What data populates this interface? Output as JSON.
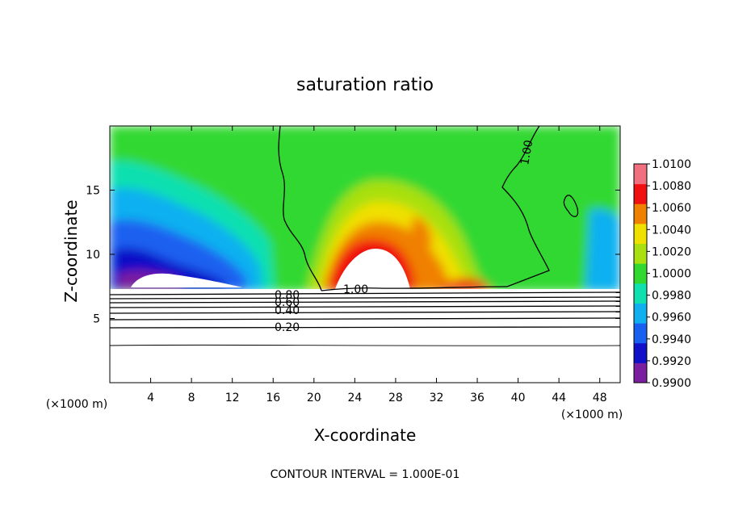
{
  "chart_data": {
    "type": "heatmap",
    "title": "saturation ratio",
    "xlabel": "X-coordinate",
    "ylabel": "Z-coordinate",
    "x_unit": "(×1000 m)",
    "z_unit": "(×1000 m)",
    "xlim": [
      0,
      50
    ],
    "ylim": [
      0,
      20
    ],
    "x_ticks": [
      "4",
      "8",
      "12",
      "16",
      "20",
      "24",
      "28",
      "32",
      "36",
      "40",
      "44",
      "48"
    ],
    "y_ticks": [
      "5",
      "10",
      "15"
    ],
    "colorbar": {
      "levels": [
        "0.9900",
        "0.9920",
        "0.9940",
        "0.9960",
        "0.9980",
        "1.0000",
        "1.0020",
        "1.0040",
        "1.0060",
        "1.0080",
        "1.0100"
      ],
      "colors": [
        "#7a1fa0",
        "#1010c8",
        "#1a60f0",
        "#10b0f0",
        "#10e0b0",
        "#30d830",
        "#a8e010",
        "#f0e000",
        "#f08000",
        "#f01010",
        "#f07080"
      ]
    },
    "contour_labels": [
      "1.00",
      "1.00",
      "0.80",
      "0.60",
      "0.40",
      "0.20"
    ],
    "contour_interval_text": "CONTOUR INTERVAL = 1.000E-01"
  }
}
